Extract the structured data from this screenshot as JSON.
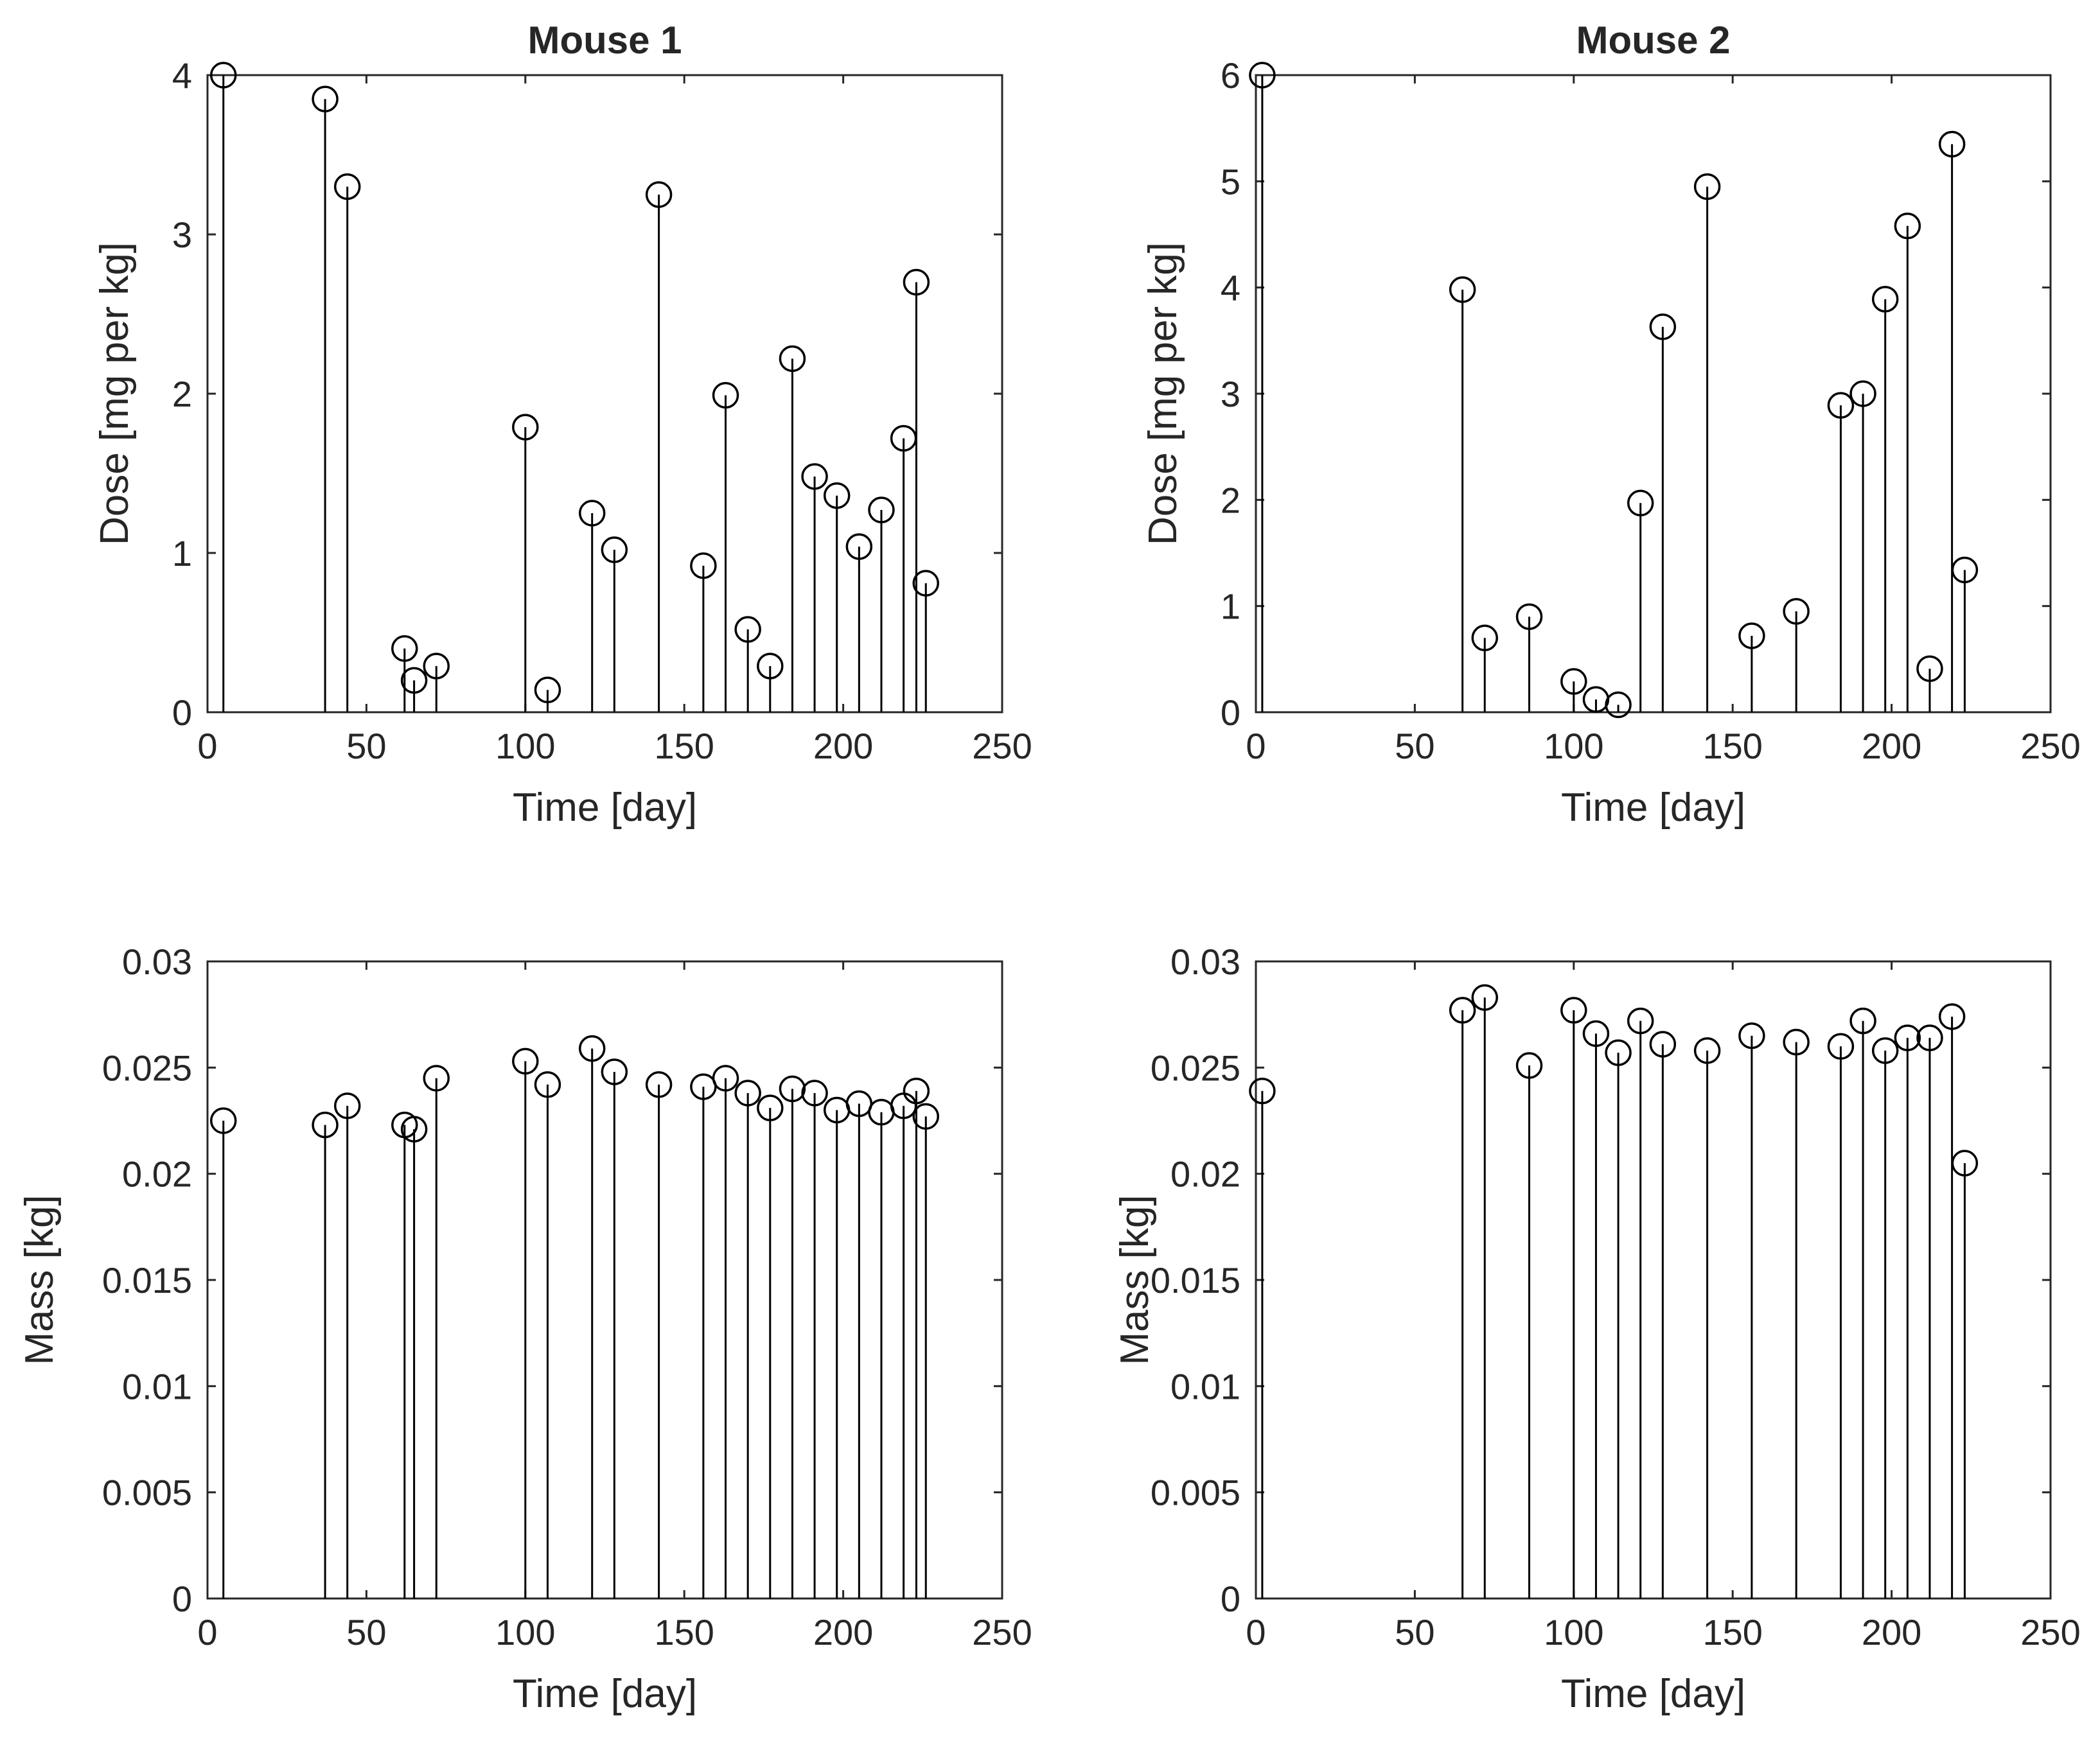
{
  "chart_data": [
    {
      "type": "stem",
      "title": "Mouse 1",
      "xlabel": "Time [day]",
      "ylabel": "Dose [mg per kg]",
      "xlim": [
        0,
        250
      ],
      "ylim": [
        0,
        4
      ],
      "xticks": [
        0,
        50,
        100,
        150,
        200,
        250
      ],
      "yticks": [
        0,
        1,
        2,
        3,
        4
      ],
      "xtick_labels": [
        "0",
        "50",
        "100",
        "150",
        "200",
        "250"
      ],
      "ytick_labels": [
        "0",
        "1",
        "2",
        "3",
        "4"
      ],
      "x": [
        5,
        37,
        44,
        62,
        65,
        72,
        100,
        107,
        121,
        128,
        142,
        156,
        163,
        170,
        177,
        184,
        191,
        198,
        205,
        212,
        219,
        223,
        226
      ],
      "y": [
        4.0,
        3.85,
        3.3,
        0.4,
        0.2,
        0.29,
        1.79,
        0.14,
        1.25,
        1.02,
        3.25,
        0.92,
        1.99,
        0.52,
        0.29,
        2.22,
        1.48,
        1.36,
        1.04,
        1.27,
        1.72,
        2.7,
        0.81
      ]
    },
    {
      "type": "stem",
      "title": "Mouse 2",
      "xlabel": "Time [day]",
      "ylabel": "Dose [mg per kg]",
      "xlim": [
        0,
        250
      ],
      "ylim": [
        0,
        6
      ],
      "xticks": [
        0,
        50,
        100,
        150,
        200,
        250
      ],
      "yticks": [
        0,
        1,
        2,
        3,
        4,
        5,
        6
      ],
      "xtick_labels": [
        "0",
        "50",
        "100",
        "150",
        "200",
        "250"
      ],
      "ytick_labels": [
        "0",
        "1",
        "2",
        "3",
        "4",
        "5",
        "6"
      ],
      "x": [
        2,
        65,
        72,
        86,
        100,
        107,
        114,
        121,
        128,
        142,
        156,
        170,
        184,
        191,
        198,
        205,
        212,
        219,
        223
      ],
      "y": [
        6.0,
        3.98,
        0.7,
        0.9,
        0.29,
        0.12,
        0.07,
        1.97,
        3.63,
        4.95,
        0.72,
        0.95,
        2.89,
        3.0,
        3.89,
        4.58,
        0.41,
        5.35,
        1.34
      ]
    },
    {
      "type": "stem",
      "title": "",
      "xlabel": "Time [day]",
      "ylabel": "Mass [kg]",
      "xlim": [
        0,
        250
      ],
      "ylim": [
        0,
        0.03
      ],
      "xticks": [
        0,
        50,
        100,
        150,
        200,
        250
      ],
      "yticks": [
        0,
        0.005,
        0.01,
        0.015,
        0.02,
        0.025,
        0.03
      ],
      "xtick_labels": [
        "0",
        "50",
        "100",
        "150",
        "200",
        "250"
      ],
      "ytick_labels": [
        "0",
        "0.005",
        "0.01",
        "0.015",
        "0.02",
        "0.025",
        "0.03"
      ],
      "x": [
        5,
        37,
        44,
        62,
        65,
        72,
        100,
        107,
        121,
        128,
        142,
        156,
        163,
        170,
        177,
        184,
        191,
        198,
        205,
        212,
        219,
        223,
        226
      ],
      "y": [
        0.0225,
        0.0223,
        0.0232,
        0.0223,
        0.0221,
        0.0245,
        0.0253,
        0.0242,
        0.0259,
        0.0248,
        0.0242,
        0.0241,
        0.0245,
        0.0238,
        0.0231,
        0.024,
        0.0238,
        0.023,
        0.0233,
        0.0229,
        0.0232,
        0.0239,
        0.0227
      ]
    },
    {
      "type": "stem",
      "title": "",
      "xlabel": "Time [day]",
      "ylabel": "Mass [kg]",
      "xlim": [
        0,
        250
      ],
      "ylim": [
        0,
        0.03
      ],
      "xticks": [
        0,
        50,
        100,
        150,
        200,
        250
      ],
      "yticks": [
        0,
        0.005,
        0.01,
        0.015,
        0.02,
        0.025,
        0.03
      ],
      "xtick_labels": [
        "0",
        "50",
        "100",
        "150",
        "200",
        "250"
      ],
      "ytick_labels": [
        "0",
        "0.005",
        "0.01",
        "0.015",
        "0.02",
        "0.025",
        "0.03"
      ],
      "x": [
        2,
        65,
        72,
        86,
        100,
        107,
        114,
        121,
        128,
        142,
        156,
        170,
        184,
        191,
        198,
        205,
        212,
        219,
        223
      ],
      "y": [
        0.0239,
        0.0277,
        0.0283,
        0.0251,
        0.0277,
        0.0266,
        0.0257,
        0.0272,
        0.0261,
        0.0258,
        0.0265,
        0.0262,
        0.026,
        0.0272,
        0.0258,
        0.0264,
        0.0264,
        0.0274,
        0.0205
      ]
    }
  ]
}
